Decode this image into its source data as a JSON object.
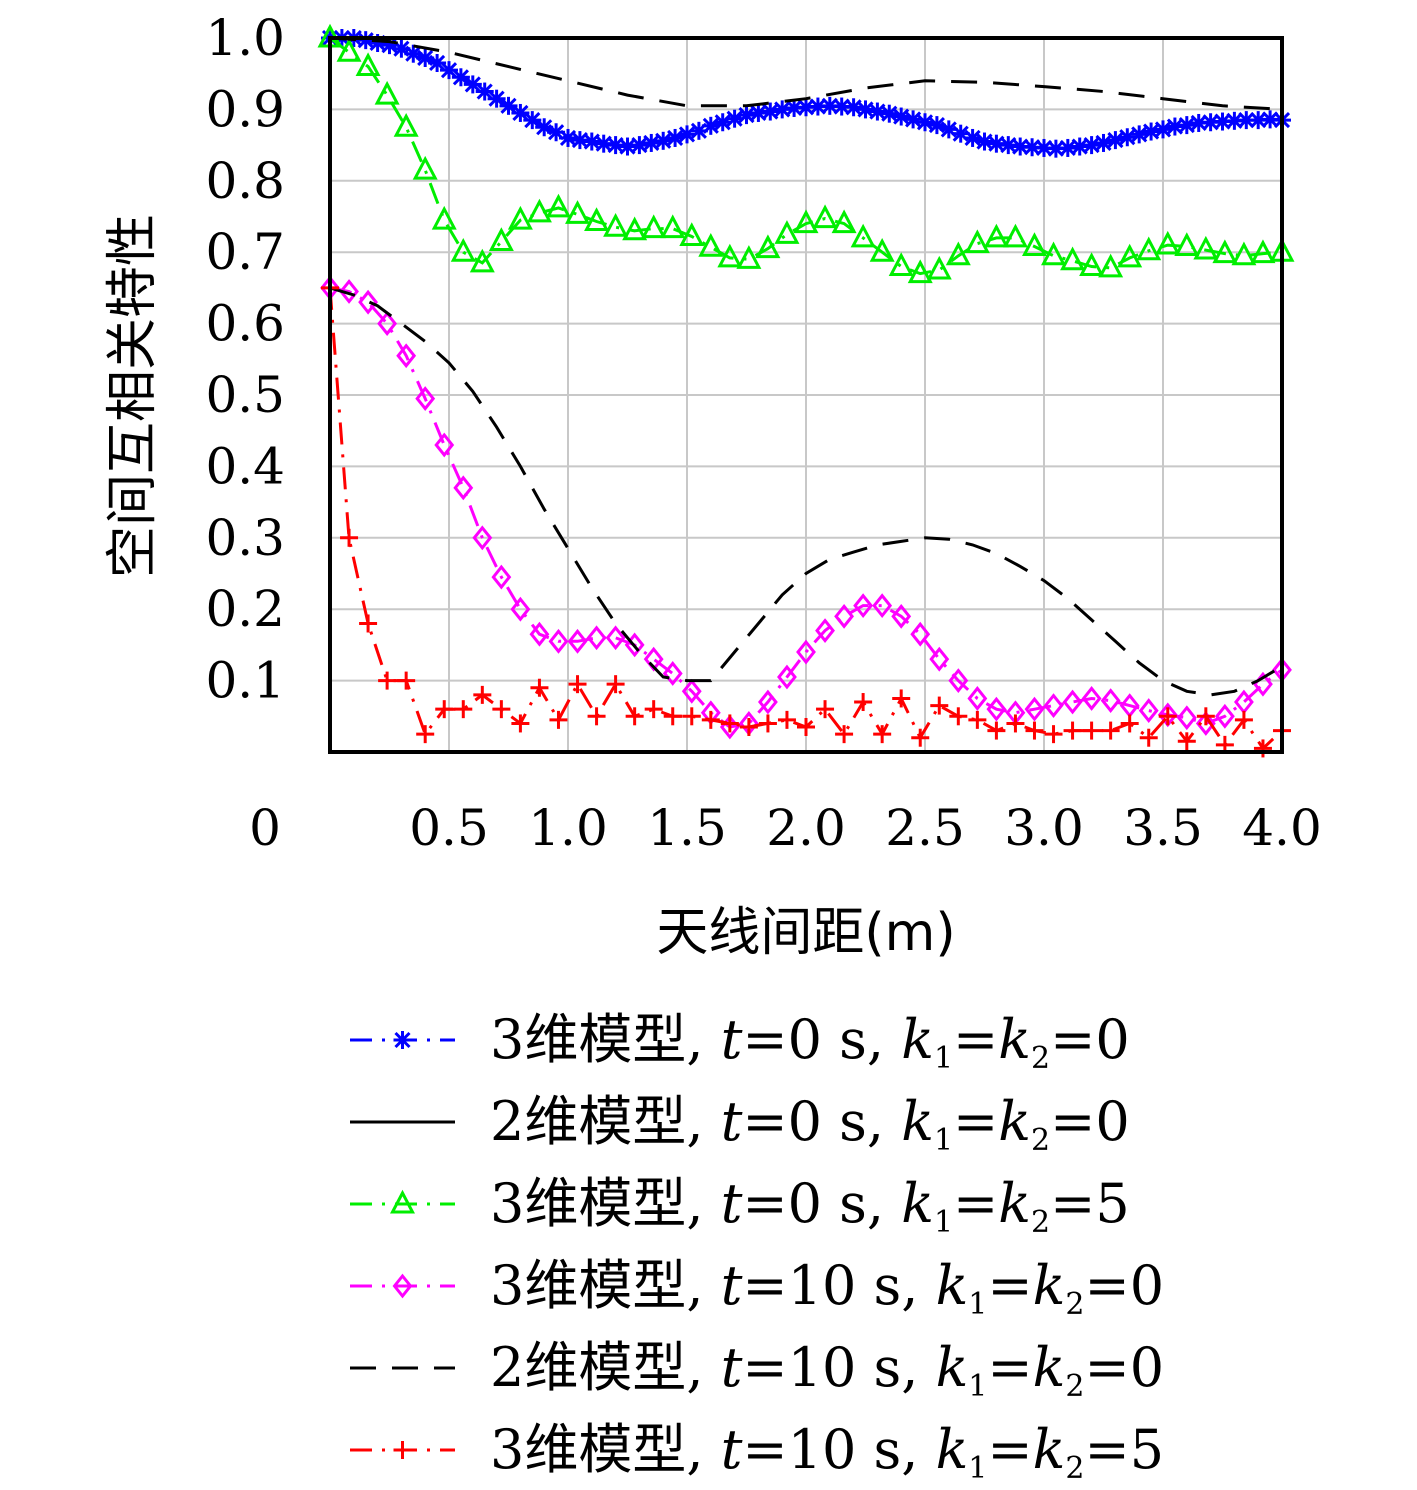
{
  "chart_data": {
    "type": "line",
    "xlabel": "天线间距(m)",
    "ylabel": "空间互相关特性",
    "xlim": [
      0,
      4.0
    ],
    "ylim": [
      0,
      1.0
    ],
    "x_origin_label": "0",
    "x_ticks": [
      {
        "value": 0.5,
        "label": "0.5"
      },
      {
        "value": 1.0,
        "label": "1.0"
      },
      {
        "value": 1.5,
        "label": "1.5"
      },
      {
        "value": 2.0,
        "label": "2.0"
      },
      {
        "value": 2.5,
        "label": "2.5"
      },
      {
        "value": 3.0,
        "label": "3.0"
      },
      {
        "value": 3.5,
        "label": "3.5"
      },
      {
        "value": 4.0,
        "label": "4.0"
      }
    ],
    "y_ticks": [
      {
        "value": 0.1,
        "label": "0.1"
      },
      {
        "value": 0.2,
        "label": "0.2"
      },
      {
        "value": 0.3,
        "label": "0.3"
      },
      {
        "value": 0.4,
        "label": "0.4"
      },
      {
        "value": 0.5,
        "label": "0.5"
      },
      {
        "value": 0.6,
        "label": "0.6"
      },
      {
        "value": 0.7,
        "label": "0.7"
      },
      {
        "value": 0.8,
        "label": "0.8"
      },
      {
        "value": 0.9,
        "label": "0.9"
      },
      {
        "value": 1.0,
        "label": "1.0"
      }
    ],
    "grid": true,
    "legend_position": "bottom",
    "series": [
      {
        "id": "blue",
        "color": "#0000ff",
        "line": "dashdot",
        "marker": "asterisk",
        "legend": {
          "pre": "3维模型, ",
          "tvar": "t",
          "tval": "=0 s, ",
          "kval": "=0"
        },
        "x": [
          0,
          0.05,
          0.1,
          0.15,
          0.2,
          0.25,
          0.3,
          0.35,
          0.4,
          0.45,
          0.5,
          0.55,
          0.6,
          0.65,
          0.7,
          0.75,
          0.8,
          0.85,
          0.9,
          0.95,
          1.0,
          1.05,
          1.1,
          1.15,
          1.2,
          1.25,
          1.3,
          1.35,
          1.4,
          1.45,
          1.5,
          1.55,
          1.6,
          1.65,
          1.7,
          1.75,
          1.8,
          1.85,
          1.9,
          1.95,
          2.0,
          2.05,
          2.1,
          2.15,
          2.2,
          2.25,
          2.3,
          2.35,
          2.4,
          2.45,
          2.5,
          2.55,
          2.6,
          2.65,
          2.7,
          2.75,
          2.8,
          2.85,
          2.9,
          2.95,
          3.0,
          3.05,
          3.1,
          3.15,
          3.2,
          3.25,
          3.3,
          3.35,
          3.4,
          3.45,
          3.5,
          3.55,
          3.6,
          3.65,
          3.7,
          3.75,
          3.8,
          3.85,
          3.9,
          3.95,
          4.0
        ],
        "y": [
          1.0,
          1.0,
          1.0,
          0.997,
          0.993,
          0.99,
          0.985,
          0.978,
          0.972,
          0.965,
          0.955,
          0.945,
          0.935,
          0.925,
          0.915,
          0.905,
          0.895,
          0.885,
          0.875,
          0.868,
          0.86,
          0.857,
          0.855,
          0.852,
          0.85,
          0.848,
          0.85,
          0.853,
          0.856,
          0.86,
          0.865,
          0.87,
          0.877,
          0.882,
          0.887,
          0.892,
          0.895,
          0.897,
          0.9,
          0.902,
          0.903,
          0.904,
          0.905,
          0.904,
          0.903,
          0.9,
          0.897,
          0.894,
          0.89,
          0.886,
          0.882,
          0.878,
          0.872,
          0.866,
          0.86,
          0.855,
          0.852,
          0.85,
          0.848,
          0.847,
          0.846,
          0.845,
          0.846,
          0.848,
          0.85,
          0.853,
          0.857,
          0.861,
          0.865,
          0.869,
          0.872,
          0.876,
          0.878,
          0.881,
          0.882,
          0.883,
          0.884,
          0.885,
          0.885,
          0.886,
          0.885
        ]
      },
      {
        "id": "black-solid",
        "color": "#000000",
        "line": "solid",
        "marker": "none",
        "legend": {
          "pre": "2维模型, ",
          "tvar": "t",
          "tval": "=0 s, ",
          "kval": "=0"
        },
        "x": [
          0,
          4.0
        ],
        "y": [
          1.0,
          1.0
        ]
      },
      {
        "id": "green",
        "color": "#00ee00",
        "line": "dashdot",
        "marker": "triangle",
        "legend": {
          "pre": "3维模型, ",
          "tvar": "t",
          "tval": "=0 s, ",
          "kval": "=5"
        },
        "x": [
          0,
          0.08,
          0.16,
          0.24,
          0.32,
          0.4,
          0.48,
          0.56,
          0.64,
          0.72,
          0.8,
          0.88,
          0.96,
          1.04,
          1.12,
          1.2,
          1.28,
          1.36,
          1.44,
          1.52,
          1.6,
          1.68,
          1.76,
          1.84,
          1.92,
          2.0,
          2.08,
          2.16,
          2.24,
          2.32,
          2.4,
          2.48,
          2.56,
          2.64,
          2.72,
          2.8,
          2.88,
          2.96,
          3.04,
          3.12,
          3.2,
          3.28,
          3.36,
          3.44,
          3.52,
          3.6,
          3.68,
          3.76,
          3.84,
          3.92,
          4.0
        ],
        "y": [
          1.0,
          0.98,
          0.96,
          0.92,
          0.875,
          0.815,
          0.745,
          0.7,
          0.685,
          0.715,
          0.745,
          0.755,
          0.762,
          0.753,
          0.743,
          0.735,
          0.73,
          0.733,
          0.733,
          0.722,
          0.707,
          0.692,
          0.69,
          0.705,
          0.725,
          0.74,
          0.747,
          0.74,
          0.72,
          0.7,
          0.68,
          0.67,
          0.675,
          0.695,
          0.712,
          0.72,
          0.72,
          0.708,
          0.695,
          0.688,
          0.68,
          0.678,
          0.692,
          0.702,
          0.71,
          0.708,
          0.703,
          0.698,
          0.695,
          0.698,
          0.7
        ]
      },
      {
        "id": "magenta",
        "color": "#ff00ff",
        "line": "dashdot",
        "marker": "diamond",
        "legend": {
          "pre": "3维模型, ",
          "tvar": "t",
          "tval": "=10 s, ",
          "kval": "=0"
        },
        "x": [
          0,
          0.08,
          0.16,
          0.24,
          0.32,
          0.4,
          0.48,
          0.56,
          0.64,
          0.72,
          0.8,
          0.88,
          0.96,
          1.04,
          1.12,
          1.2,
          1.28,
          1.36,
          1.44,
          1.52,
          1.6,
          1.68,
          1.76,
          1.84,
          1.92,
          2.0,
          2.08,
          2.16,
          2.24,
          2.32,
          2.4,
          2.48,
          2.56,
          2.64,
          2.72,
          2.8,
          2.88,
          2.96,
          3.04,
          3.12,
          3.2,
          3.28,
          3.36,
          3.44,
          3.52,
          3.6,
          3.68,
          3.76,
          3.84,
          3.92,
          4.0
        ],
        "y": [
          0.65,
          0.645,
          0.63,
          0.6,
          0.555,
          0.495,
          0.43,
          0.37,
          0.3,
          0.245,
          0.2,
          0.165,
          0.155,
          0.155,
          0.16,
          0.16,
          0.15,
          0.13,
          0.11,
          0.085,
          0.055,
          0.035,
          0.04,
          0.07,
          0.105,
          0.14,
          0.17,
          0.19,
          0.205,
          0.205,
          0.19,
          0.165,
          0.13,
          0.1,
          0.075,
          0.06,
          0.055,
          0.06,
          0.065,
          0.07,
          0.075,
          0.072,
          0.065,
          0.058,
          0.052,
          0.048,
          0.04,
          0.05,
          0.07,
          0.095,
          0.115
        ]
      },
      {
        "id": "black-dash",
        "color": "#000000",
        "line": "dashed",
        "marker": "none",
        "legend": {
          "pre": "2维模型, ",
          "tvar": "t",
          "tval": "=10 s, ",
          "kval": "=0"
        },
        "x": [
          0,
          0.1,
          0.2,
          0.3,
          0.4,
          0.5,
          0.6,
          0.7,
          0.8,
          0.9,
          1.0,
          1.1,
          1.2,
          1.3,
          1.4,
          1.5,
          1.6,
          1.7,
          1.8,
          1.9,
          2.0,
          2.1,
          2.2,
          2.3,
          2.4,
          2.5,
          2.6,
          2.7,
          2.8,
          2.9,
          3.0,
          3.1,
          3.2,
          3.3,
          3.4,
          3.5,
          3.6,
          3.7,
          3.8,
          3.9,
          4.0
        ],
        "y": [
          0.65,
          0.64,
          0.625,
          0.6,
          0.575,
          0.545,
          0.505,
          0.455,
          0.4,
          0.34,
          0.285,
          0.23,
          0.18,
          0.14,
          0.105,
          0.1,
          0.1,
          0.14,
          0.18,
          0.22,
          0.25,
          0.27,
          0.28,
          0.29,
          0.295,
          0.3,
          0.298,
          0.29,
          0.278,
          0.26,
          0.24,
          0.215,
          0.185,
          0.155,
          0.125,
          0.1,
          0.085,
          0.08,
          0.085,
          0.1,
          0.12
        ]
      },
      {
        "id": "black-dash-top",
        "color": "#000000",
        "line": "dashed",
        "marker": "none",
        "legend": null,
        "x": [
          0,
          0.25,
          0.5,
          0.75,
          1.0,
          1.25,
          1.5,
          1.75,
          2.0,
          2.25,
          2.5,
          2.75,
          3.0,
          3.25,
          3.5,
          3.75,
          4.0
        ],
        "y": [
          1.0,
          0.995,
          0.98,
          0.96,
          0.94,
          0.92,
          0.905,
          0.905,
          0.915,
          0.93,
          0.94,
          0.938,
          0.932,
          0.925,
          0.915,
          0.905,
          0.9
        ]
      },
      {
        "id": "red",
        "color": "#ff0000",
        "line": "dashdot",
        "marker": "plus",
        "legend": {
          "pre": "3维模型, ",
          "tvar": "t",
          "tval": "=10 s, ",
          "kval": "=5"
        },
        "x": [
          0,
          0.08,
          0.16,
          0.24,
          0.32,
          0.4,
          0.48,
          0.56,
          0.64,
          0.72,
          0.8,
          0.88,
          0.96,
          1.04,
          1.12,
          1.2,
          1.28,
          1.36,
          1.44,
          1.52,
          1.6,
          1.68,
          1.76,
          1.84,
          1.92,
          2.0,
          2.08,
          2.16,
          2.24,
          2.32,
          2.4,
          2.48,
          2.56,
          2.64,
          2.72,
          2.8,
          2.88,
          2.96,
          3.04,
          3.12,
          3.2,
          3.28,
          3.36,
          3.44,
          3.52,
          3.6,
          3.68,
          3.76,
          3.84,
          3.92,
          4.0
        ],
        "y": [
          0.65,
          0.3,
          0.18,
          0.1,
          0.1,
          0.025,
          0.06,
          0.06,
          0.08,
          0.06,
          0.04,
          0.09,
          0.045,
          0.095,
          0.05,
          0.095,
          0.05,
          0.06,
          0.05,
          0.05,
          0.045,
          0.04,
          0.035,
          0.04,
          0.045,
          0.035,
          0.06,
          0.025,
          0.07,
          0.025,
          0.075,
          0.02,
          0.065,
          0.05,
          0.045,
          0.03,
          0.04,
          0.03,
          0.025,
          0.03,
          0.03,
          0.03,
          0.04,
          0.02,
          0.05,
          0.015,
          0.05,
          0.01,
          0.045,
          0.005,
          0.03
        ]
      }
    ]
  }
}
